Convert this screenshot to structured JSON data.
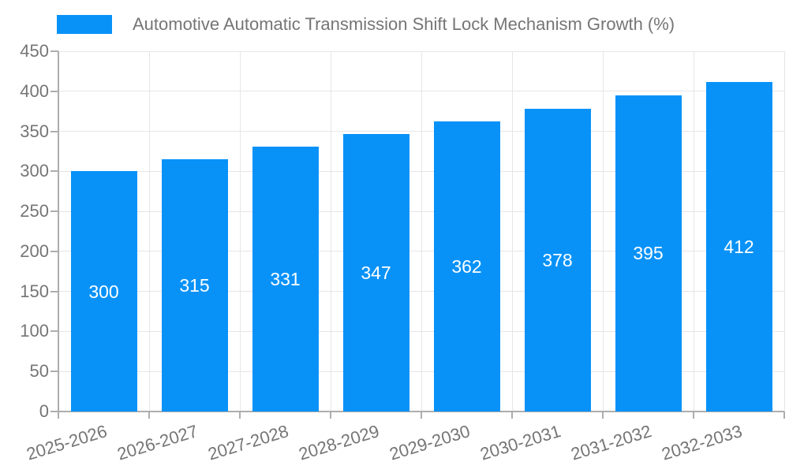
{
  "chart_data": {
    "type": "bar",
    "title": "Automotive Automatic Transmission Shift Lock Mechanism Growth (%)",
    "legend": {
      "position": "top-left",
      "label": "Automotive Automatic Transmission Shift Lock Mechanism Growth (%)"
    },
    "categories": [
      "2025-2026",
      "2026-2027",
      "2027-2028",
      "2028-2029",
      "2029-2030",
      "2030-2031",
      "2031-2032",
      "2032-2033"
    ],
    "values": [
      300,
      315,
      331,
      347,
      362,
      378,
      395,
      412
    ],
    "value_labels_shown": true,
    "xlabel": "",
    "ylabel": "",
    "ylim": [
      0,
      450
    ],
    "ytick_step": 50,
    "yticks": [
      0,
      50,
      100,
      150,
      200,
      250,
      300,
      350,
      400,
      450
    ],
    "grid": true,
    "colors": {
      "bar": "#0892f8",
      "value_label": "#ffffff",
      "axis_text": "#757575",
      "axis_line": "#adadad",
      "gridline": "#e6e6e6",
      "background": "#ffffff"
    }
  }
}
